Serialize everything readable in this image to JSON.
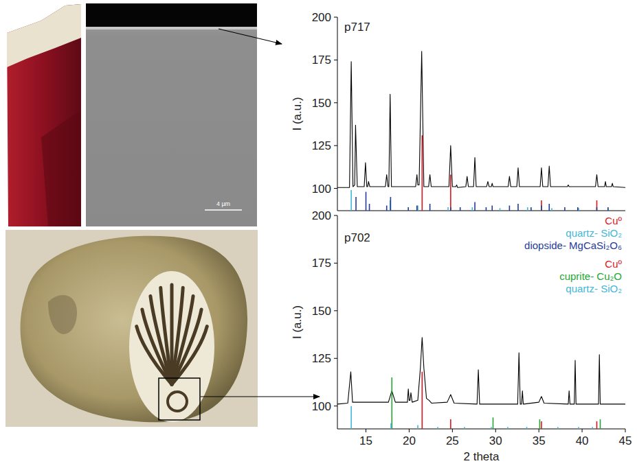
{
  "chart_data": [
    {
      "type": "line",
      "title": "p717",
      "ylabel": "I (a.u.)",
      "xlim": [
        11.7,
        45
      ],
      "ylim": [
        87,
        200
      ],
      "yticks": [
        100,
        125,
        150,
        175,
        200
      ],
      "tick_labels": "y",
      "legend": "below right",
      "color": "#000000",
      "x": [
        11.7,
        13.1,
        13.3,
        13.5,
        13.7,
        13.8,
        14.0,
        14.8,
        14.95,
        15.1,
        15.2,
        15.3,
        15.45,
        17.25,
        17.4,
        17.55,
        17.65,
        17.8,
        17.95,
        20.75,
        20.9,
        21.0,
        21.15,
        21.45,
        21.7,
        22.25,
        22.4,
        22.55,
        24.6,
        24.8,
        25.0,
        25.4,
        25.5,
        25.6,
        26.55,
        26.7,
        26.85,
        27.45,
        27.6,
        27.75,
        28.95,
        29.1,
        29.25,
        29.5,
        29.6,
        29.7,
        31.45,
        31.6,
        31.75,
        32.45,
        32.6,
        32.75,
        35.15,
        35.3,
        35.45,
        36.05,
        36.2,
        36.35,
        38.3,
        38.4,
        38.5,
        41.55,
        41.7,
        41.85,
        42.6,
        42.7,
        42.8,
        43.4,
        43.5,
        43.6,
        45
      ],
      "values": [
        100.5,
        100.5,
        174,
        101,
        102,
        137,
        101,
        101,
        115,
        101,
        101,
        104,
        101,
        101,
        108,
        101,
        101,
        155,
        101,
        101,
        108,
        102,
        102,
        180,
        101,
        101,
        108,
        101,
        101,
        125,
        101,
        101,
        102,
        100.5,
        101,
        107,
        101,
        101,
        118,
        101,
        101,
        104,
        101,
        101,
        103,
        101,
        101,
        107,
        101,
        101,
        112,
        101,
        101,
        112,
        101,
        101,
        113,
        101,
        101,
        102,
        101,
        101,
        108,
        101,
        101,
        104,
        101,
        101,
        103,
        101,
        100.5
      ],
      "series": [
        {
          "name": "Cuº",
          "type": "stick",
          "color": "#e0141e",
          "x": [
            21.5,
            24.8,
            35.3,
            41.7
          ],
          "values": [
            131,
            108,
            93,
            93
          ]
        },
        {
          "name": "quartz- SiO₂",
          "type": "stick",
          "color": "#3fb7d9",
          "x": [
            13.3,
            17.8,
            21.0,
            24.5,
            27.3,
            30.5,
            33.7,
            36.5,
            39.6,
            43.0
          ],
          "values": [
            99,
            93,
            90,
            89,
            89,
            88.5,
            89,
            88.5,
            88.5,
            88.5
          ]
        },
        {
          "name": "diopside- MgCaSi₂O₆",
          "type": "stick",
          "color": "#1f3c9c",
          "x": [
            13.85,
            15.0,
            15.4,
            17.4,
            17.85,
            19.9,
            20.9,
            22.4,
            24.8,
            25.9,
            27.6,
            28.9,
            29.6,
            31.6,
            32.6,
            34.1,
            35.3,
            36.2,
            38.0,
            39.5,
            41.7,
            43.0
          ],
          "values": [
            95,
            98,
            91,
            90,
            95,
            89,
            90,
            91,
            89,
            89,
            92,
            89,
            90,
            90,
            91,
            89,
            90,
            91,
            89,
            89,
            89,
            89
          ]
        }
      ]
    },
    {
      "type": "line",
      "title": "p702",
      "ylabel": "I (a.u.)",
      "xlabel": "2 theta",
      "xlim": [
        11.7,
        45
      ],
      "ylim": [
        88,
        200
      ],
      "yticks": [
        100,
        125,
        150,
        175,
        200
      ],
      "xticks": [
        15,
        20,
        25,
        30,
        35,
        40,
        45
      ],
      "legend": "upper right",
      "color": "#000000",
      "x": [
        11.7,
        12.9,
        13.25,
        13.45,
        17.6,
        18.0,
        18.4,
        19.8,
        19.9,
        20.0,
        20.1,
        20.2,
        20.35,
        21.0,
        21.3,
        21.5,
        21.7,
        22.0,
        22.3,
        22.6,
        24.4,
        24.8,
        25.2,
        27.85,
        28.0,
        28.15,
        32.55,
        32.7,
        32.85,
        33.0,
        33.1,
        33.2,
        35.0,
        35.3,
        35.6,
        38.4,
        38.5,
        38.6,
        39.1,
        39.2,
        39.3,
        41.9,
        42.0,
        42.1,
        45
      ],
      "values": [
        101,
        101.5,
        118,
        102,
        102,
        108,
        102,
        102,
        109,
        103,
        103,
        107,
        102,
        103,
        120,
        136,
        120,
        104,
        103,
        101.5,
        102,
        106,
        101.5,
        101,
        119,
        101,
        101,
        128,
        101,
        101,
        108,
        101,
        102,
        105,
        101.5,
        101,
        108,
        101,
        101,
        124,
        101,
        101,
        127,
        101,
        101
      ],
      "series": [
        {
          "name": "Cuº",
          "type": "stick",
          "color": "#e0141e",
          "x": [
            21.5,
            24.8,
            35.3,
            41.7
          ],
          "values": [
            118,
            93,
            92,
            92
          ]
        },
        {
          "name": "cuprite- Cu₂O",
          "type": "stick",
          "color": "#22a832",
          "x": [
            18.0,
            29.7,
            35.1,
            42.1
          ],
          "values": [
            115,
            94,
            93,
            93
          ]
        },
        {
          "name": "quartz- SiO₂",
          "type": "stick",
          "color": "#3fb7d9",
          "x": [
            13.3,
            17.9,
            21.0,
            23.3,
            26.4,
            29.5,
            31.4,
            33.6,
            37.2,
            39.6,
            41.2
          ],
          "values": [
            100,
            91,
            90,
            89,
            89,
            89,
            89,
            89,
            89,
            89,
            89
          ]
        }
      ]
    }
  ],
  "photos": {
    "sem_scale_bar": "4 µm"
  }
}
